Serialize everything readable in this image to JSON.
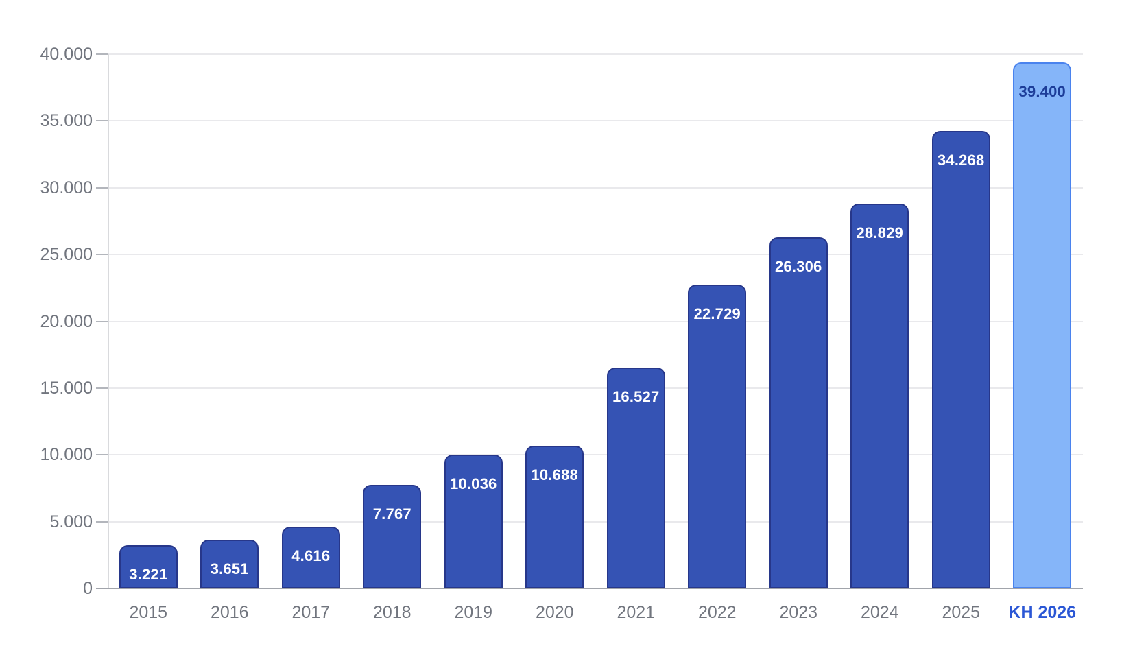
{
  "chart_data": {
    "type": "bar",
    "title": "",
    "xlabel": "",
    "ylabel": "",
    "categories": [
      "2015",
      "2016",
      "2017",
      "2018",
      "2019",
      "2020",
      "2021",
      "2022",
      "2023",
      "2024",
      "2025",
      "KH 2026"
    ],
    "values": [
      3221,
      3651,
      4616,
      7767,
      10036,
      10688,
      16527,
      22729,
      26306,
      28829,
      34268,
      39400
    ],
    "value_labels": [
      "3.221",
      "3.651",
      "4.616",
      "7.767",
      "10.036",
      "10.688",
      "16.527",
      "22.729",
      "26.306",
      "28.829",
      "34.268",
      "39.400"
    ],
    "highlight_index": 11,
    "ylim": [
      0,
      40000
    ],
    "ytick_step": 5000,
    "ytick_values": [
      0,
      5000,
      10000,
      15000,
      20000,
      25000,
      30000,
      35000,
      40000
    ],
    "ytick_labels": [
      "0",
      "5.000",
      "10.000",
      "15.000",
      "20.000",
      "25.000",
      "30.000",
      "35.000",
      "40.000"
    ],
    "grid": true,
    "legend_position": "none",
    "colors": {
      "bar_fill": "#3553b4",
      "bar_border": "#27378a",
      "bar_label": "#ffffff",
      "highlight_fill": "#85b5f9",
      "highlight_border": "#4a83ee",
      "highlight_label": "#1d3d99",
      "axis_label": "#71757e",
      "highlight_axis_label": "#2b57d5",
      "gridline": "#e9e9ec",
      "baseline": "#a1a4ab",
      "axis_line": "#d9dadd",
      "tick": "#b3b6bc"
    }
  }
}
